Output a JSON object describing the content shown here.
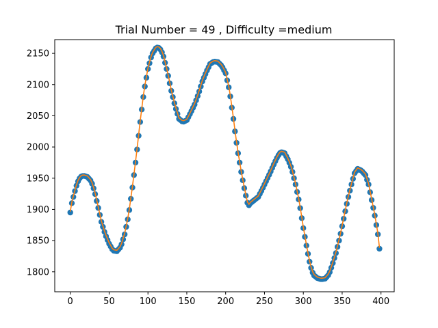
{
  "chart_data": {
    "type": "scatter",
    "title": "Trial Number = 49  , Difficulty =medium",
    "xlabel": "",
    "ylabel": "",
    "xlim": [
      -20,
      417
    ],
    "ylim": [
      1768,
      2172
    ],
    "x_ticks": [
      0,
      50,
      100,
      150,
      200,
      250,
      300,
      350,
      400
    ],
    "y_ticks": [
      1800,
      1850,
      1900,
      1950,
      2000,
      2050,
      2100,
      2150
    ],
    "grid": false,
    "legend": "none",
    "colors": {
      "scatter": "#1f77b4",
      "line": "#ff7f0e"
    },
    "anchors": [
      [
        0,
        1895
      ],
      [
        1,
        1905
      ],
      [
        3,
        1915
      ],
      [
        5,
        1925
      ],
      [
        8,
        1938
      ],
      [
        10,
        1945
      ],
      [
        13,
        1952
      ],
      [
        17,
        1954
      ],
      [
        22,
        1952
      ],
      [
        27,
        1945
      ],
      [
        31,
        1930
      ],
      [
        35,
        1908
      ],
      [
        40,
        1880
      ],
      [
        45,
        1860
      ],
      [
        50,
        1845
      ],
      [
        55,
        1834
      ],
      [
        60,
        1833
      ],
      [
        65,
        1840
      ],
      [
        70,
        1860
      ],
      [
        75,
        1890
      ],
      [
        80,
        1935
      ],
      [
        85,
        1985
      ],
      [
        90,
        2040
      ],
      [
        95,
        2090
      ],
      [
        100,
        2125
      ],
      [
        105,
        2148
      ],
      [
        110,
        2158
      ],
      [
        113,
        2160
      ],
      [
        117,
        2155
      ],
      [
        120,
        2145
      ],
      [
        125,
        2120
      ],
      [
        130,
        2090
      ],
      [
        135,
        2065
      ],
      [
        140,
        2045
      ],
      [
        145,
        2040
      ],
      [
        150,
        2043
      ],
      [
        155,
        2055
      ],
      [
        160,
        2068
      ],
      [
        165,
        2085
      ],
      [
        170,
        2105
      ],
      [
        175,
        2120
      ],
      [
        180,
        2133
      ],
      [
        185,
        2137
      ],
      [
        190,
        2136
      ],
      [
        195,
        2130
      ],
      [
        200,
        2118
      ],
      [
        205,
        2090
      ],
      [
        210,
        2045
      ],
      [
        213,
        2015
      ],
      [
        216,
        1990
      ],
      [
        220,
        1960
      ],
      [
        223,
        1940
      ],
      [
        226,
        1922
      ],
      [
        229,
        1905
      ],
      [
        232,
        1910
      ],
      [
        237,
        1915
      ],
      [
        242,
        1920
      ],
      [
        247,
        1932
      ],
      [
        252,
        1945
      ],
      [
        257,
        1958
      ],
      [
        262,
        1972
      ],
      [
        267,
        1985
      ],
      [
        271,
        1992
      ],
      [
        276,
        1990
      ],
      [
        281,
        1978
      ],
      [
        285,
        1965
      ],
      [
        290,
        1940
      ],
      [
        295,
        1910
      ],
      [
        300,
        1870
      ],
      [
        305,
        1835
      ],
      [
        309,
        1810
      ],
      [
        313,
        1795
      ],
      [
        318,
        1790
      ],
      [
        323,
        1788
      ],
      [
        328,
        1789
      ],
      [
        333,
        1796
      ],
      [
        337,
        1810
      ],
      [
        342,
        1830
      ],
      [
        347,
        1855
      ],
      [
        352,
        1885
      ],
      [
        357,
        1915
      ],
      [
        362,
        1940
      ],
      [
        366,
        1958
      ],
      [
        370,
        1965
      ],
      [
        375,
        1962
      ],
      [
        380,
        1955
      ],
      [
        384,
        1940
      ],
      [
        388,
        1915
      ],
      [
        392,
        1890
      ],
      [
        396,
        1860
      ],
      [
        398,
        1837
      ]
    ]
  }
}
